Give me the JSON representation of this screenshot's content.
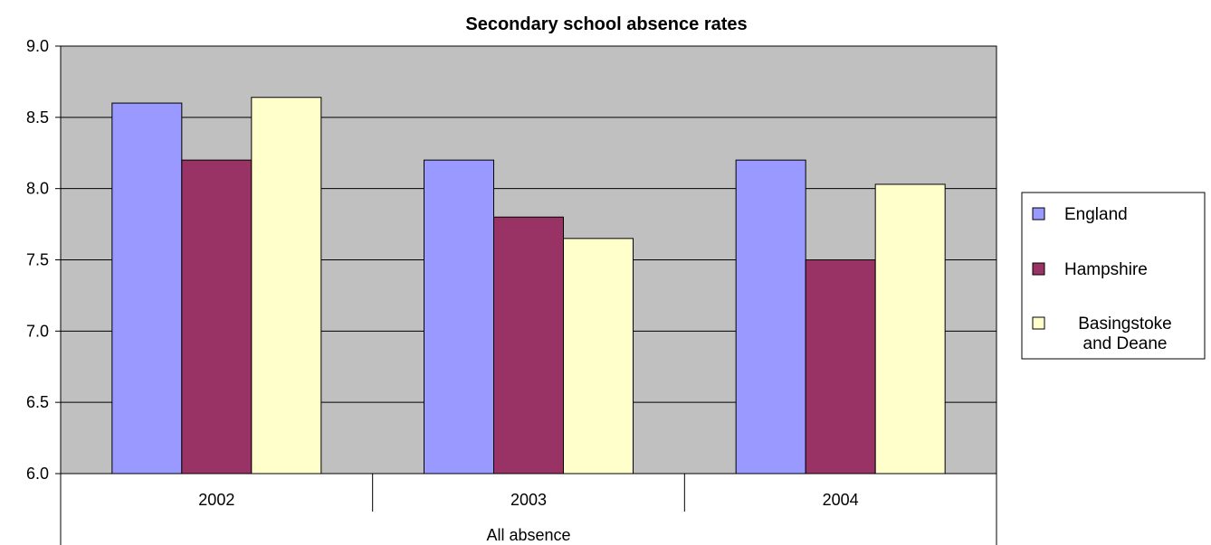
{
  "chart_data": {
    "type": "bar",
    "title": "Secondary school absence rates",
    "categories": [
      "2002",
      "2003",
      "2004"
    ],
    "category_group_label": "All absence",
    "ylim": [
      6.0,
      9.0
    ],
    "yticks": [
      "6.0",
      "6.5",
      "7.0",
      "7.5",
      "8.0",
      "8.5",
      "9.0"
    ],
    "grid": true,
    "legend_position": "right",
    "series": [
      {
        "name": "England",
        "values": [
          8.6,
          8.2,
          8.2
        ],
        "color": "#9999ff"
      },
      {
        "name": "Hampshire",
        "values": [
          8.2,
          7.8,
          7.5
        ],
        "color": "#993366"
      },
      {
        "name": "Basingstoke and Deane",
        "values": [
          8.64,
          7.65,
          8.03
        ],
        "color": "#ffffcc"
      }
    ],
    "legend_labels": [
      [
        "England"
      ],
      [
        "Hampshire"
      ],
      [
        "Basingstoke",
        "and Deane"
      ]
    ],
    "colors": {
      "plot_background": "#c0c0c0",
      "border": "#000000"
    }
  }
}
